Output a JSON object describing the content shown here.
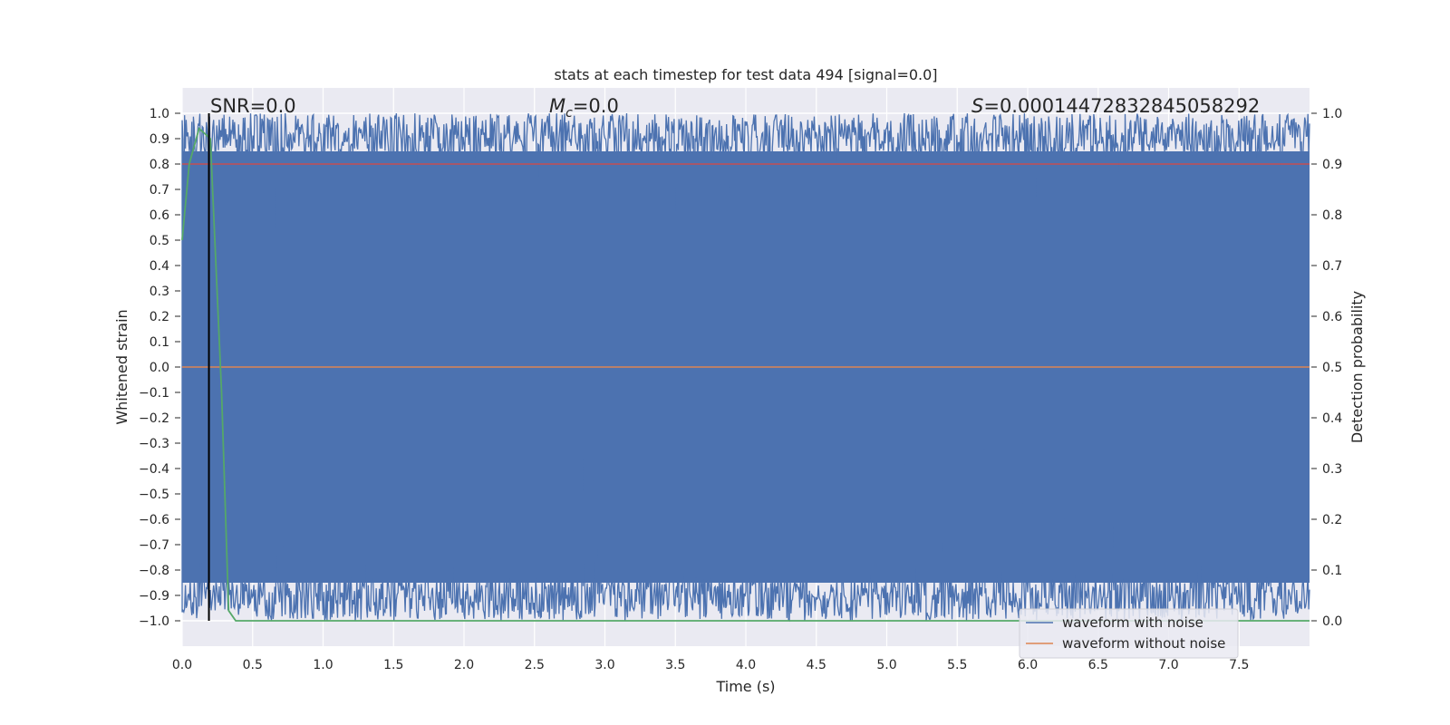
{
  "chart_data": {
    "type": "line",
    "title": "stats at each timestep for test data 494 [signal=0.0]",
    "xlabel": "Time (s)",
    "ylabel": "Whitened strain",
    "y2label": "Detection probability",
    "xlim": [
      0.0,
      8.0
    ],
    "ylim": [
      -1.1,
      1.1
    ],
    "y2lim": [
      -0.05,
      1.05
    ],
    "xticks": [
      "0.0",
      "0.5",
      "1.0",
      "1.5",
      "2.0",
      "2.5",
      "3.0",
      "3.5",
      "4.0",
      "4.5",
      "5.0",
      "5.5",
      "6.0",
      "6.5",
      "7.0",
      "7.5"
    ],
    "yticks": [
      "1.0",
      "0.9",
      "0.8",
      "0.7",
      "0.6",
      "0.5",
      "0.4",
      "0.3",
      "0.2",
      "0.1",
      "0.0",
      "−0.1",
      "−0.2",
      "−0.3",
      "−0.4",
      "−0.5",
      "−0.6",
      "−0.7",
      "−0.8",
      "−0.9",
      "−1.0"
    ],
    "y2ticks": [
      "1.0",
      "0.9",
      "0.8",
      "0.7",
      "0.6",
      "0.5",
      "0.4",
      "0.3",
      "0.2",
      "0.1",
      "0.0"
    ],
    "annotations": {
      "snr": "SNR=0.0",
      "mc_symbol": "M",
      "mc_sub": "c",
      "mc_value": "=0.0",
      "s_symbol": "S",
      "s_value": "=0.00014472832845058292"
    },
    "legend": {
      "placement": "lower-right",
      "entries": [
        "waveform with noise",
        "waveform without noise"
      ]
    },
    "series": [
      {
        "name": "waveform with noise",
        "color": "#4c72b0",
        "description_range": [
          -1.0,
          1.0
        ],
        "envelope": {
          "upper_typical": 0.9,
          "lower_typical": -0.9
        }
      },
      {
        "name": "waveform without noise",
        "color": "#dd8452",
        "x": [
          0.0,
          8.0
        ],
        "y": [
          0.0,
          0.0
        ]
      },
      {
        "color": "#55a868",
        "axis": "right",
        "x": [
          0.0,
          0.05,
          0.12,
          0.2,
          0.28,
          0.33,
          0.38,
          1.0,
          2.0,
          3.0,
          4.0,
          5.0,
          6.0,
          7.0,
          8.0
        ],
        "y": [
          0.75,
          0.9,
          0.97,
          0.95,
          0.45,
          0.02,
          0.0,
          0.0,
          0.0,
          0.0,
          0.0,
          0.0,
          0.0,
          0.0,
          0.0
        ]
      }
    ],
    "reference_lines": [
      {
        "orientation": "horizontal",
        "axis": "right",
        "value": 0.9,
        "color": "#c44e52"
      },
      {
        "orientation": "vertical",
        "value": 0.19,
        "color": "#000000"
      }
    ],
    "grid": true,
    "background": "#eaeaf2"
  }
}
